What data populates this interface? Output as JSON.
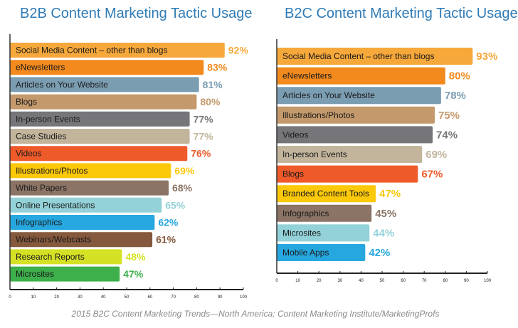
{
  "chart_data": [
    {
      "type": "bar",
      "orientation": "horizontal",
      "title": "B2B Content Marketing Tactic Usage",
      "xlim": [
        0,
        100
      ],
      "xticks": [
        0,
        10,
        20,
        30,
        40,
        50,
        60,
        70,
        80,
        90,
        100
      ],
      "grid": false,
      "categories": [
        "Social Media Content – other than blogs",
        "eNewsletters",
        "Articles on Your Website",
        "Blogs",
        "In-person Events",
        "Case Studies",
        "Videos",
        "Illustrations/Photos",
        "White Papers",
        "Online Presentations",
        "Infographics",
        "Webinars/Webcasts",
        "Research Reports",
        "Microsites"
      ],
      "values": [
        92,
        83,
        81,
        80,
        77,
        77,
        76,
        69,
        68,
        65,
        62,
        61,
        48,
        47
      ],
      "data_labels": [
        "92%",
        "83%",
        "81%",
        "80%",
        "77%",
        "77%",
        "76%",
        "69%",
        "68%",
        "65%",
        "62%",
        "61%",
        "48%",
        "47%"
      ],
      "colors": [
        "#f6a83b",
        "#f28a1e",
        "#7b9db2",
        "#c49a6c",
        "#76767a",
        "#c2b59c",
        "#ef5a2a",
        "#fcc80a",
        "#8b7466",
        "#93d2d8",
        "#27a7df",
        "#85593d",
        "#d5e125",
        "#3daf4b"
      ]
    },
    {
      "type": "bar",
      "orientation": "horizontal",
      "title": "B2C Content Marketing Tactic Usage",
      "xlim": [
        0,
        100
      ],
      "xticks": [
        0,
        10,
        20,
        30,
        40,
        50,
        60,
        70,
        80,
        90,
        100
      ],
      "grid": false,
      "categories": [
        "Social Media Content – other than blogs",
        "eNewsletters",
        "Articles on Your Website",
        "Illustrations/Photos",
        "Videos",
        "In-person Events",
        "Blogs",
        "Branded Content Tools",
        "Infographics",
        "Microsites",
        "Mobile Apps"
      ],
      "values": [
        93,
        80,
        78,
        75,
        74,
        69,
        67,
        47,
        45,
        44,
        42
      ],
      "data_labels": [
        "93%",
        "80%",
        "78%",
        "75%",
        "74%",
        "69%",
        "67%",
        "47%",
        "45%",
        "44%",
        "42%"
      ],
      "colors": [
        "#f6a83b",
        "#f28a1e",
        "#7b9db2",
        "#c49a6c",
        "#76767a",
        "#c2b59c",
        "#ef5a2a",
        "#fcc80a",
        "#8b7466",
        "#93d2d8",
        "#27a7df"
      ]
    }
  ],
  "footer": "2015 B2C Content Marketing Trends—North America: Content Marketing Institute/MarketingProfs"
}
